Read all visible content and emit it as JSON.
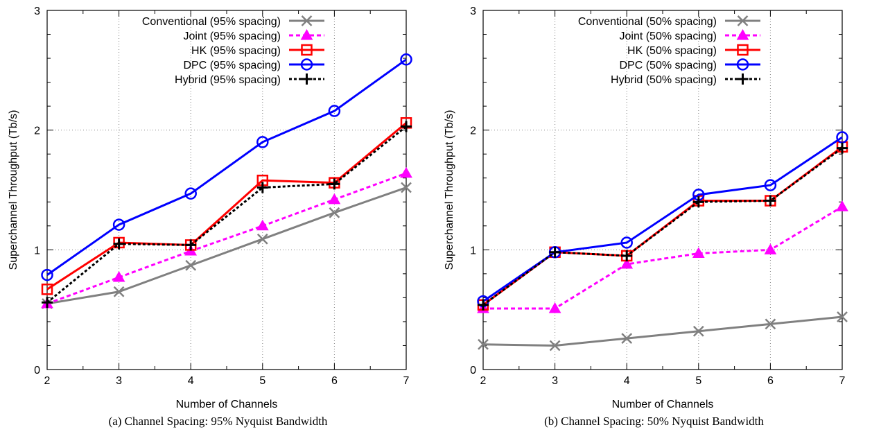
{
  "chart_data": [
    {
      "type": "line",
      "caption": "(a) Channel Spacing: 95% Nyquist Bandwidth",
      "xlabel": "Number of Channels",
      "ylabel": "Superchannel Throughput (Tb/s)",
      "xlim": [
        2,
        7
      ],
      "ylim": [
        0,
        3
      ],
      "x_ticks": [
        2,
        3,
        4,
        5,
        6,
        7
      ],
      "y_ticks": [
        0,
        1,
        2,
        3
      ],
      "grid": true,
      "legend_position": "top-right",
      "x": [
        2,
        3,
        4,
        5,
        6,
        7
      ],
      "series": [
        {
          "name": "Conventional (95% spacing)",
          "color": "#808080",
          "marker": "x",
          "dash": "solid",
          "values": [
            0.55,
            0.65,
            0.87,
            1.09,
            1.31,
            1.52
          ]
        },
        {
          "name": "Joint (95% spacing)",
          "color": "#ff00ff",
          "marker": "triangle",
          "dash": "dashed",
          "values": [
            0.55,
            0.77,
            0.99,
            1.2,
            1.42,
            1.64
          ]
        },
        {
          "name": "HK (95% spacing)",
          "color": "#ff0000",
          "marker": "square",
          "dash": "solid",
          "values": [
            0.67,
            1.06,
            1.04,
            1.58,
            1.56,
            2.06
          ]
        },
        {
          "name": "DPC (95% spacing)",
          "color": "#0000ff",
          "marker": "circle",
          "dash": "solid",
          "values": [
            0.79,
            1.21,
            1.47,
            1.9,
            2.16,
            2.59
          ]
        },
        {
          "name": "Hybrid (95% spacing)",
          "color": "#000000",
          "marker": "plus",
          "dash": "dotted",
          "values": [
            0.56,
            1.05,
            1.04,
            1.52,
            1.55,
            2.03
          ]
        }
      ]
    },
    {
      "type": "line",
      "caption": "(b) Channel Spacing: 50% Nyquist Bandwidth",
      "xlabel": "Number of Channels",
      "ylabel": "Superchannel Throughput (Tb/s)",
      "xlim": [
        2,
        7
      ],
      "ylim": [
        0,
        3
      ],
      "x_ticks": [
        2,
        3,
        4,
        5,
        6,
        7
      ],
      "y_ticks": [
        0,
        1,
        2,
        3
      ],
      "grid": true,
      "legend_position": "top-right",
      "x": [
        2,
        3,
        4,
        5,
        6,
        7
      ],
      "series": [
        {
          "name": "Conventional (50% spacing)",
          "color": "#808080",
          "marker": "x",
          "dash": "solid",
          "values": [
            0.21,
            0.2,
            0.26,
            0.32,
            0.38,
            0.44
          ]
        },
        {
          "name": "Joint (50% spacing)",
          "color": "#ff00ff",
          "marker": "triangle",
          "dash": "dashed",
          "values": [
            0.51,
            0.51,
            0.88,
            0.97,
            1.0,
            1.36
          ]
        },
        {
          "name": "HK (50% spacing)",
          "color": "#ff0000",
          "marker": "square",
          "dash": "solid",
          "values": [
            0.54,
            0.98,
            0.95,
            1.41,
            1.41,
            1.86
          ]
        },
        {
          "name": "DPC (50% spacing)",
          "color": "#0000ff",
          "marker": "circle",
          "dash": "solid",
          "values": [
            0.57,
            0.98,
            1.06,
            1.46,
            1.54,
            1.94
          ]
        },
        {
          "name": "Hybrid (50% spacing)",
          "color": "#000000",
          "marker": "plus",
          "dash": "dotted",
          "values": [
            0.54,
            0.98,
            0.95,
            1.4,
            1.41,
            1.85
          ]
        }
      ]
    }
  ]
}
